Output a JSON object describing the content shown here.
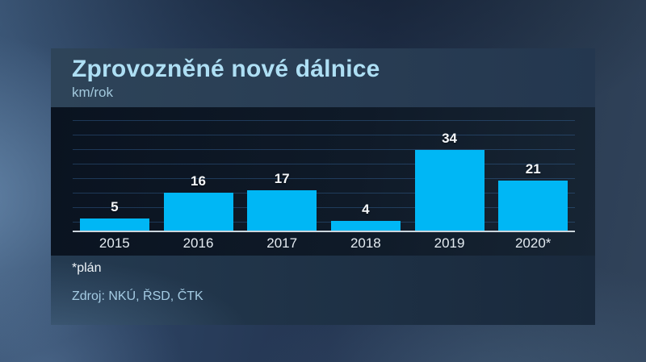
{
  "header": {
    "title": "Zprovozněné nové dálnice",
    "subtitle": "km/rok"
  },
  "footer": {
    "note": "*plán",
    "source": "Zdroj: NKÚ, ŘSD, ČTK"
  },
  "chart_data": {
    "type": "bar",
    "title": "Zprovozněné nové dálnice",
    "ylabel": "km/rok",
    "categories": [
      "2015",
      "2016",
      "2017",
      "2018",
      "2019",
      "2020*"
    ],
    "values": [
      5,
      16,
      17,
      4,
      34,
      21
    ],
    "ylim": [
      0,
      40
    ],
    "grid": true,
    "legend": false,
    "value_labels": true,
    "annotation": "*plán (2020 value is a plan)",
    "bar_color": "#00b7f5"
  },
  "colors": {
    "bar": "#00b7f5",
    "title_accent": "#aedff4",
    "plot_background": "#0d1825",
    "panel_header_background": "#2a3f55"
  }
}
